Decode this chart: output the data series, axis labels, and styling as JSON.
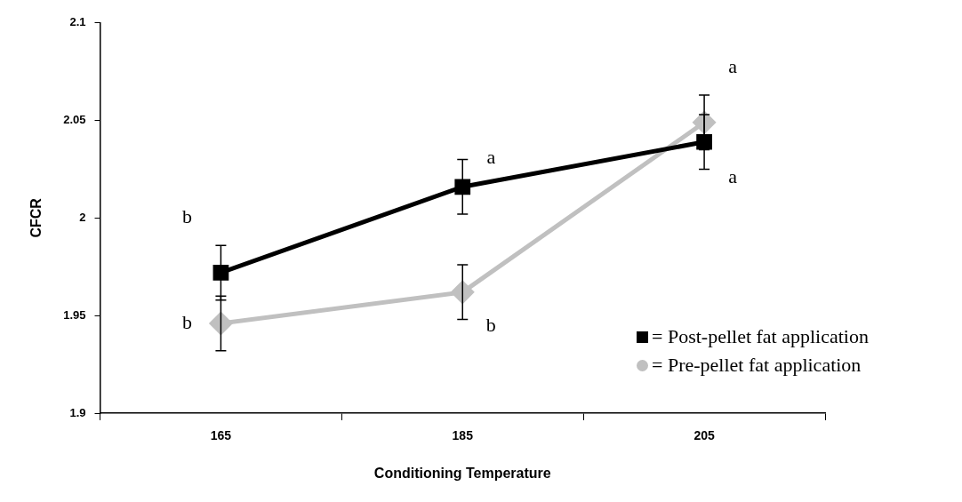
{
  "chart_data": {
    "type": "line",
    "ylabel": "CFCR",
    "xlabel": "Conditioning Temperature",
    "categories": [
      "165",
      "185",
      "205"
    ],
    "series": [
      {
        "name": "= Post-pellet fat application",
        "color": "#000000",
        "marker": "square",
        "values": [
          1.972,
          2.016,
          2.039
        ],
        "errors": [
          0.014,
          0.014,
          0.014
        ]
      },
      {
        "name": "= Pre-pellet fat application",
        "color": "#c0c0c0",
        "marker": "diamond",
        "values": [
          1.946,
          1.962,
          2.049
        ],
        "errors": [
          0.014,
          0.014,
          0.014
        ]
      }
    ],
    "ylim": [
      1.9,
      2.1
    ],
    "yticks": [
      1.9,
      1.95,
      2,
      2.05,
      2.1
    ],
    "grid": false,
    "legend": "right",
    "line_style": "solid",
    "annotations": [
      {
        "text": "b",
        "x": "165",
        "y": 1.972
      },
      {
        "text": "b",
        "x": "165",
        "y": 1.946
      },
      {
        "text": "a",
        "x": "185",
        "y": 2.016
      },
      {
        "text": "b",
        "x": "185",
        "y": 1.962
      },
      {
        "text": "a",
        "x": "205",
        "y": 2.049
      },
      {
        "text": "a",
        "x": "205",
        "y": 2.039
      }
    ]
  }
}
